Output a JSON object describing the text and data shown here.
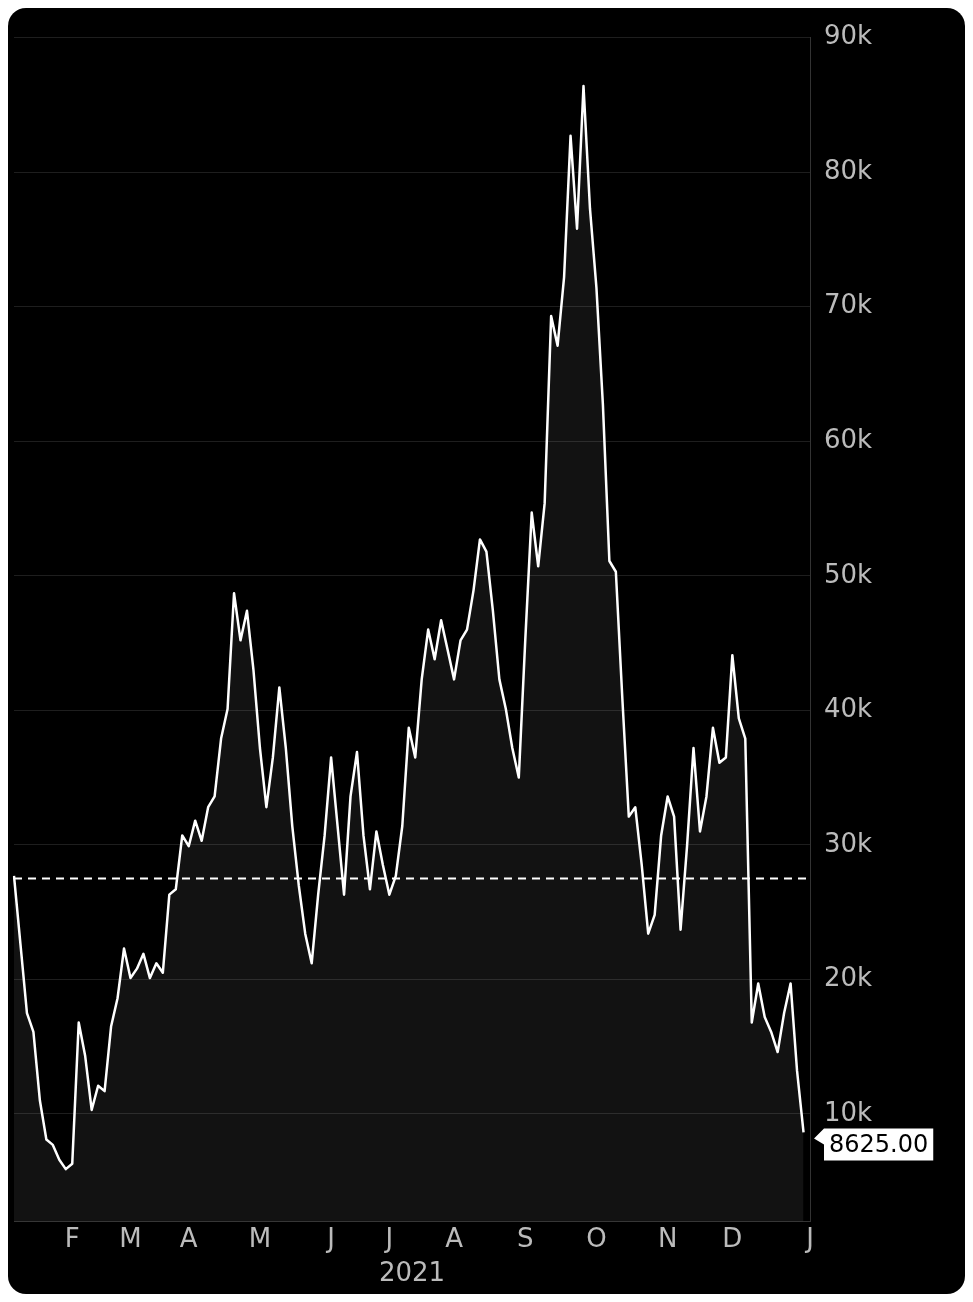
{
  "chart_data": {
    "type": "area",
    "xlabel": "2021",
    "color": "#ffffff",
    "grid": "y",
    "marker": "none",
    "line_style": "solid",
    "categories": [
      null,
      null,
      null,
      null,
      null,
      null,
      null,
      null,
      null,
      "F",
      null,
      null,
      null,
      null,
      null,
      null,
      null,
      null,
      "M",
      null,
      null,
      null,
      null,
      null,
      null,
      null,
      null,
      "A",
      null,
      null,
      null,
      null,
      null,
      null,
      null,
      null,
      null,
      null,
      "M",
      null,
      null,
      null,
      null,
      null,
      null,
      null,
      null,
      null,
      null,
      "J",
      null,
      null,
      null,
      null,
      null,
      null,
      null,
      null,
      "J",
      null,
      null,
      null,
      null,
      null,
      null,
      null,
      null,
      null,
      "A",
      null,
      null,
      null,
      null,
      null,
      null,
      null,
      null,
      null,
      null,
      "S",
      null,
      null,
      null,
      null,
      null,
      null,
      null,
      null,
      null,
      null,
      "O",
      null,
      null,
      null,
      null,
      null,
      null,
      null,
      null,
      null,
      null,
      "N",
      null,
      null,
      null,
      null,
      null,
      null,
      null,
      null,
      null,
      "D",
      null,
      null,
      null,
      null,
      null,
      null,
      null,
      null,
      null,
      null,
      null,
      "J"
    ],
    "values": [
      27700,
      22600,
      17500,
      16100,
      11000,
      8100,
      7700,
      6600,
      5900,
      6300,
      16800,
      14300,
      10300,
      12100,
      11700,
      16500,
      18600,
      22300,
      20100,
      20800,
      21900,
      20100,
      21200,
      20500,
      26300,
      26700,
      30700,
      29900,
      31800,
      30300,
      32800,
      33600,
      37900,
      40100,
      48700,
      45200,
      47400,
      43000,
      37200,
      32800,
      36500,
      41700,
      37200,
      31400,
      27000,
      23400,
      21200,
      26300,
      30700,
      36500,
      31400,
      26300,
      33600,
      36900,
      30700,
      26700,
      31000,
      28500,
      26300,
      27700,
      31400,
      38700,
      36500,
      42300,
      46000,
      43800,
      46700,
      44500,
      42300,
      45200,
      46000,
      48900,
      52700,
      51800,
      47400,
      42300,
      40100,
      37200,
      35000,
      45200,
      54700,
      50700,
      55400,
      69300,
      67100,
      72200,
      82700,
      75800,
      86400,
      77300,
      71400,
      62700,
      51100,
      50300,
      40900,
      32100,
      32800,
      28500,
      23400,
      24800,
      30700,
      33600,
      32100,
      23700,
      29900,
      37200,
      31000,
      33600,
      38700,
      36100,
      36500,
      44100,
      39400,
      37900,
      16800,
      19700,
      17200,
      16100,
      14600,
      17500,
      19700,
      13200,
      8625,
      null
    ],
    "ylim": [
      2000,
      90000
    ],
    "yticks": [
      {
        "value": 10000,
        "label": "10k"
      },
      {
        "value": 20000,
        "label": "20k"
      },
      {
        "value": 30000,
        "label": "30k"
      },
      {
        "value": 40000,
        "label": "40k"
      },
      {
        "value": 50000,
        "label": "50k"
      },
      {
        "value": 60000,
        "label": "60k"
      },
      {
        "value": 70000,
        "label": "70k"
      },
      {
        "value": 80000,
        "label": "80k"
      },
      {
        "value": 90000,
        "label": "90k"
      }
    ],
    "ref_lines": [
      {
        "axis": "y",
        "value": 27500,
        "color": "#ffffff",
        "line_style": "dashed"
      }
    ],
    "value_labels": [
      null,
      null,
      null,
      null,
      null,
      null,
      null,
      null,
      null,
      null,
      null,
      null,
      null,
      null,
      null,
      null,
      null,
      null,
      null,
      null,
      null,
      null,
      null,
      null,
      null,
      null,
      null,
      null,
      null,
      null,
      null,
      null,
      null,
      null,
      null,
      null,
      null,
      null,
      null,
      null,
      null,
      null,
      null,
      null,
      null,
      null,
      null,
      null,
      null,
      null,
      null,
      null,
      null,
      null,
      null,
      null,
      null,
      null,
      null,
      null,
      null,
      null,
      null,
      null,
      null,
      null,
      null,
      null,
      null,
      null,
      null,
      null,
      null,
      null,
      null,
      null,
      null,
      null,
      null,
      null,
      null,
      null,
      null,
      null,
      null,
      null,
      null,
      null,
      null,
      null,
      null,
      null,
      null,
      null,
      null,
      null,
      null,
      null,
      null,
      null,
      null,
      null,
      null,
      null,
      null,
      null,
      null,
      null,
      null,
      null,
      null,
      null,
      null,
      null,
      null,
      null,
      null,
      null,
      null,
      null,
      null,
      null,
      "8625.00",
      null
    ]
  }
}
